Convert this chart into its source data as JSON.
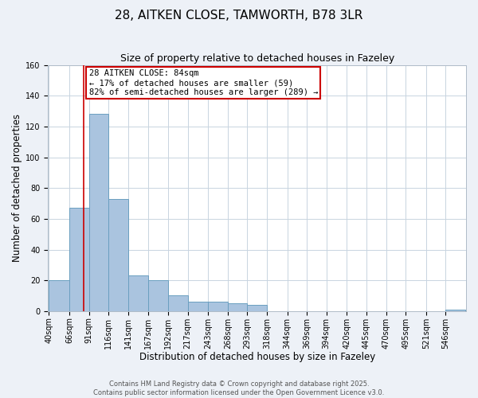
{
  "title": "28, AITKEN CLOSE, TAMWORTH, B78 3LR",
  "subtitle": "Size of property relative to detached houses in Fazeley",
  "xlabel": "Distribution of detached houses by size in Fazeley",
  "ylabel": "Number of detached properties",
  "bar_values": [
    20,
    67,
    128,
    73,
    23,
    20,
    10,
    6,
    6,
    5,
    4,
    0,
    0,
    0,
    0,
    0,
    0,
    0,
    0,
    0,
    1
  ],
  "bar_left_edges": [
    40,
    66,
    91,
    116,
    141,
    167,
    192,
    217,
    243,
    268,
    293,
    318,
    344,
    369,
    394,
    420,
    445,
    470,
    495,
    521,
    546
  ],
  "bar_widths": [
    26,
    25,
    25,
    25,
    26,
    25,
    25,
    26,
    25,
    25,
    25,
    26,
    25,
    25,
    26,
    25,
    25,
    25,
    26,
    25,
    25
  ],
  "tick_labels": [
    "40sqm",
    "66sqm",
    "91sqm",
    "116sqm",
    "141sqm",
    "167sqm",
    "192sqm",
    "217sqm",
    "243sqm",
    "268sqm",
    "293sqm",
    "318sqm",
    "344sqm",
    "369sqm",
    "394sqm",
    "420sqm",
    "445sqm",
    "470sqm",
    "495sqm",
    "521sqm",
    "546sqm"
  ],
  "tick_positions": [
    40,
    66,
    91,
    116,
    141,
    167,
    192,
    217,
    243,
    268,
    293,
    318,
    344,
    369,
    394,
    420,
    445,
    470,
    495,
    521,
    546
  ],
  "bar_color": "#aac4df",
  "bar_edge_color": "#6a9fc0",
  "bar_edge_width": 0.7,
  "ylim": [
    0,
    160
  ],
  "yticks": [
    0,
    20,
    40,
    60,
    80,
    100,
    120,
    140,
    160
  ],
  "vline_x": 84,
  "vline_color": "#cc0000",
  "annotation_text": "28 AITKEN CLOSE: 84sqm\n← 17% of detached houses are smaller (59)\n82% of semi-detached houses are larger (289) →",
  "annotation_box_color": "#ffffff",
  "annotation_box_edge_color": "#cc0000",
  "footer_line1": "Contains HM Land Registry data © Crown copyright and database right 2025.",
  "footer_line2": "Contains public sector information licensed under the Open Government Licence v3.0.",
  "bg_color": "#edf1f7",
  "plot_bg_color": "#ffffff",
  "grid_color": "#c8d4e0",
  "title_fontsize": 11,
  "subtitle_fontsize": 9,
  "axis_label_fontsize": 8.5,
  "tick_fontsize": 7,
  "annotation_fontsize": 7.5,
  "footer_fontsize": 6
}
